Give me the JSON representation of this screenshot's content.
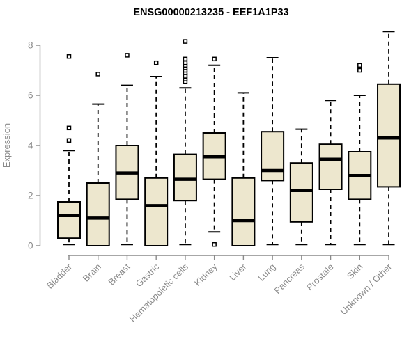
{
  "chart_data": {
    "type": "boxplot",
    "title": "ENSG00000213235 - EEF1A1P33",
    "ylabel": "Expression",
    "xlabel": "",
    "ylim": [
      0,
      8.6
    ],
    "yticks": [
      0,
      2,
      4,
      6,
      8
    ],
    "grid": false,
    "legend": "none",
    "box_fill_color": "#EDE7CE",
    "box_border_color": "#000000",
    "median_color": "#000000",
    "axis_color": "#8a8a8a",
    "tick_label_color": "#8a8a8a",
    "outlier_fill_color": "#ffffff",
    "categories": [
      "Bladder",
      "Brain",
      "Breast",
      "Gastric",
      "Hematopoietic cells",
      "Kidney",
      "Liver",
      "Lung",
      "Pancreas",
      "Prostate",
      "Skin",
      "Unknown / Other"
    ],
    "series": [
      {
        "category": "Bladder",
        "whisker_low": 0.05,
        "q1": 0.3,
        "median": 1.2,
        "q3": 1.75,
        "whisker_high": 3.8,
        "outliers": [
          4.2,
          4.7,
          7.55
        ]
      },
      {
        "category": "Brain",
        "whisker_low": 0.0,
        "q1": 0.0,
        "median": 1.1,
        "q3": 2.5,
        "whisker_high": 5.65,
        "outliers": [
          6.85
        ]
      },
      {
        "category": "Breast",
        "whisker_low": 0.05,
        "q1": 1.85,
        "median": 2.9,
        "q3": 4.0,
        "whisker_high": 6.4,
        "outliers": [
          7.6
        ]
      },
      {
        "category": "Gastric",
        "whisker_low": 0.0,
        "q1": 0.0,
        "median": 1.6,
        "q3": 2.7,
        "whisker_high": 6.75,
        "outliers": [
          7.3
        ]
      },
      {
        "category": "Hematopoietic cells",
        "whisker_low": 0.05,
        "q1": 1.8,
        "median": 2.65,
        "q3": 3.65,
        "whisker_high": 6.3,
        "outliers": [
          6.55,
          6.65,
          6.75,
          6.8,
          6.9,
          7.0,
          7.1,
          7.2,
          7.3,
          7.45,
          8.15
        ]
      },
      {
        "category": "Kidney",
        "whisker_low": 0.55,
        "q1": 2.65,
        "median": 3.55,
        "q3": 4.5,
        "whisker_high": 7.2,
        "outliers": [
          0.05,
          7.45
        ]
      },
      {
        "category": "Liver",
        "whisker_low": 0.0,
        "q1": 0.0,
        "median": 1.0,
        "q3": 2.7,
        "whisker_high": 6.1,
        "outliers": []
      },
      {
        "category": "Lung",
        "whisker_low": 0.05,
        "q1": 2.6,
        "median": 3.0,
        "q3": 4.55,
        "whisker_high": 7.5,
        "outliers": []
      },
      {
        "category": "Pancreas",
        "whisker_low": 0.05,
        "q1": 0.95,
        "median": 2.2,
        "q3": 3.3,
        "whisker_high": 4.65,
        "outliers": []
      },
      {
        "category": "Prostate",
        "whisker_low": 0.05,
        "q1": 2.25,
        "median": 3.45,
        "q3": 4.05,
        "whisker_high": 5.8,
        "outliers": []
      },
      {
        "category": "Skin",
        "whisker_low": 0.05,
        "q1": 1.85,
        "median": 2.8,
        "q3": 3.75,
        "whisker_high": 6.0,
        "outliers": [
          7.0,
          7.2
        ]
      },
      {
        "category": "Unknown / Other",
        "whisker_low": 0.05,
        "q1": 2.35,
        "median": 4.3,
        "q3": 6.45,
        "whisker_high": 8.55,
        "outliers": []
      }
    ]
  }
}
